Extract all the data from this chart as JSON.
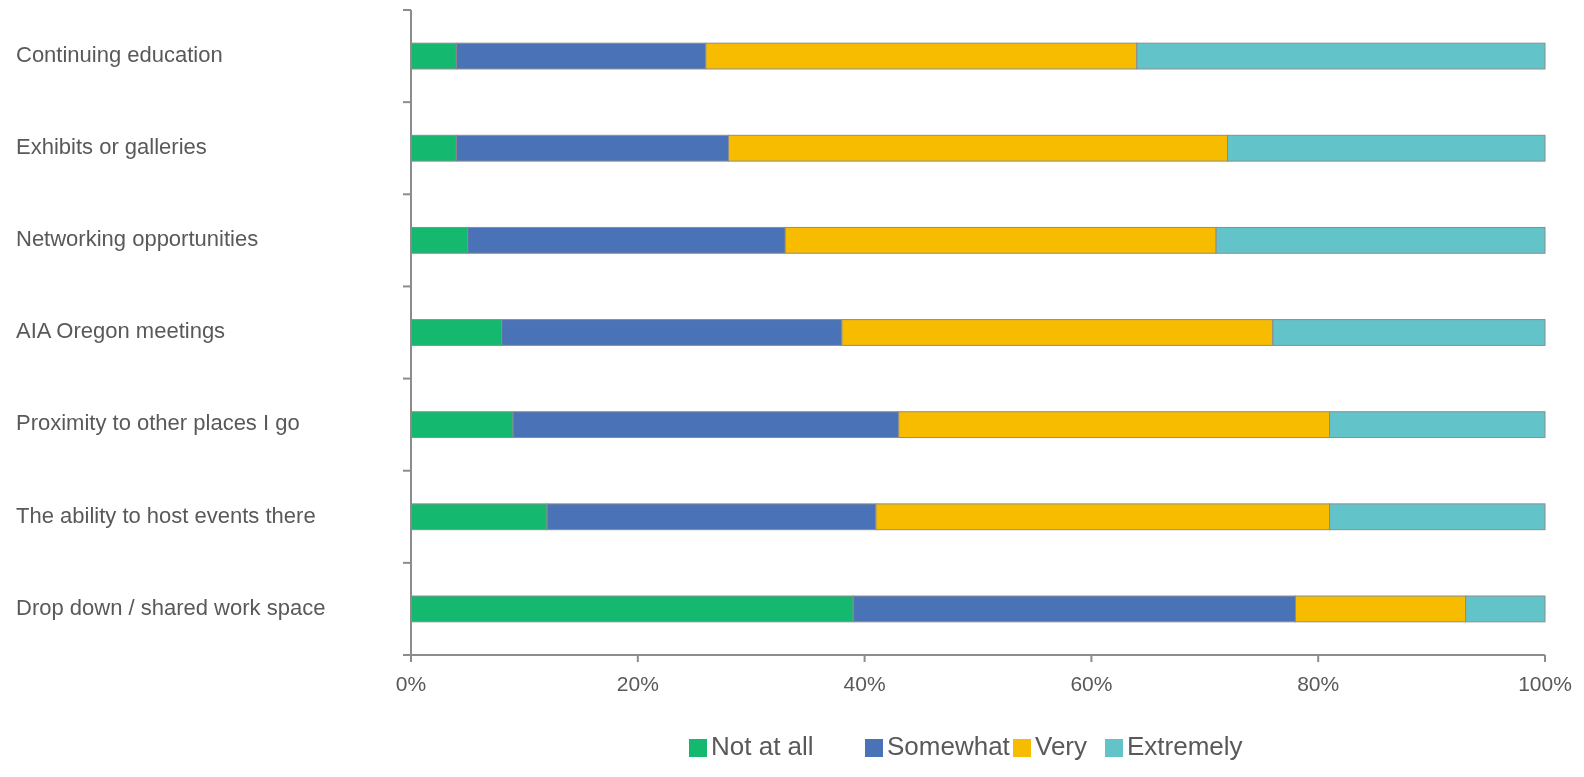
{
  "chart_data": {
    "type": "bar",
    "orientation": "horizontal",
    "stacked": true,
    "categories": [
      "Continuing education",
      "Exhibits or galleries",
      "Networking opportunities",
      "AIA Oregon meetings",
      "Proximity to other places I go",
      "The ability to host events there",
      "Drop down / shared work space"
    ],
    "series": [
      {
        "name": "Not at all",
        "color": "#14b86f",
        "values": [
          4,
          4,
          5,
          8,
          9,
          12,
          39
        ]
      },
      {
        "name": "Somewhat",
        "color": "#4a72b6",
        "values": [
          22,
          24,
          28,
          30,
          34,
          29,
          39
        ]
      },
      {
        "name": "Very",
        "color": "#f7bb00",
        "values": [
          38,
          44,
          38,
          38,
          38,
          40,
          15
        ]
      },
      {
        "name": "Extremely",
        "color": "#62c3c9",
        "values": [
          36,
          28,
          29,
          24,
          19,
          19,
          7
        ]
      }
    ],
    "xlim": [
      0,
      100
    ],
    "xticks": [
      {
        "value": 0,
        "label": "0%"
      },
      {
        "value": 20,
        "label": "20%"
      },
      {
        "value": 40,
        "label": "40%"
      },
      {
        "value": 60,
        "label": "60%"
      },
      {
        "value": 80,
        "label": "80%"
      },
      {
        "value": 100,
        "label": "100%"
      }
    ],
    "grid": false,
    "legend": "bottom"
  }
}
